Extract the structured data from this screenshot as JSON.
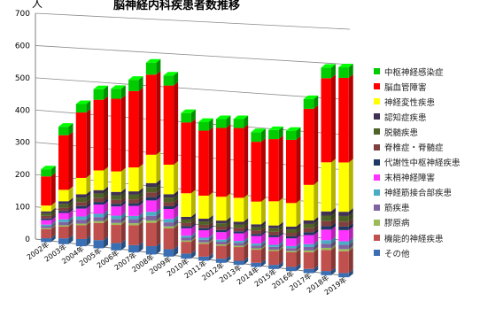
{
  "chart_data": {
    "type": "bar",
    "stacked": true,
    "view": "3d-perspective",
    "title": "脳神経内科疾患者数推移",
    "unit_label": "人",
    "ylim": [
      0,
      700
    ],
    "yticks": [
      0,
      100,
      200,
      300,
      400,
      500,
      600,
      700
    ],
    "grid": true,
    "legend_position": "right",
    "categories": [
      "2002年",
      "2003年",
      "2004年",
      "2005年",
      "2006年",
      "2007年",
      "2008年",
      "2009年",
      "2010年",
      "2011年",
      "2012年",
      "2013年",
      "2014年",
      "2015年",
      "2016年",
      "2017年",
      "2018年",
      "2019年"
    ],
    "series": [
      {
        "name": "その他",
        "color": "#3a6fb3",
        "values": [
          12,
          18,
          22,
          25,
          22,
          22,
          25,
          22,
          15,
          12,
          12,
          12,
          12,
          12,
          12,
          12,
          12,
          12
        ]
      },
      {
        "name": "機能的神経疾患",
        "color": "#c0504d",
        "values": [
          28,
          36,
          42,
          52,
          55,
          60,
          70,
          62,
          35,
          38,
          38,
          40,
          38,
          40,
          42,
          48,
          60,
          62
        ]
      },
      {
        "name": "膠原病",
        "color": "#9bbb59",
        "values": [
          3,
          4,
          5,
          6,
          6,
          6,
          7,
          6,
          4,
          4,
          4,
          4,
          4,
          4,
          4,
          5,
          6,
          6
        ]
      },
      {
        "name": "筋疾患",
        "color": "#8064a2",
        "values": [
          6,
          10,
          12,
          12,
          12,
          12,
          14,
          12,
          8,
          8,
          8,
          8,
          8,
          8,
          8,
          10,
          12,
          12
        ]
      },
      {
        "name": "神経筋接合部疾患",
        "color": "#4bacc6",
        "values": [
          5,
          8,
          10,
          10,
          10,
          10,
          12,
          10,
          6,
          6,
          6,
          6,
          6,
          6,
          6,
          8,
          10,
          10
        ]
      },
      {
        "name": "末梢神経障害",
        "color": "#ff33ff",
        "values": [
          14,
          20,
          24,
          28,
          28,
          30,
          34,
          30,
          22,
          22,
          22,
          22,
          22,
          22,
          22,
          26,
          30,
          32
        ]
      },
      {
        "name": "代謝性中枢神経疾患",
        "color": "#1f3864",
        "values": [
          5,
          6,
          8,
          8,
          8,
          8,
          10,
          8,
          6,
          6,
          6,
          6,
          6,
          6,
          6,
          8,
          10,
          10
        ]
      },
      {
        "name": "脊椎症・脊髄症",
        "color": "#7f3f3f",
        "values": [
          8,
          10,
          12,
          12,
          12,
          12,
          14,
          12,
          10,
          10,
          10,
          10,
          10,
          10,
          10,
          12,
          14,
          14
        ]
      },
      {
        "name": "脱髄疾患",
        "color": "#4f6228",
        "values": [
          8,
          12,
          14,
          14,
          14,
          14,
          16,
          14,
          10,
          10,
          10,
          10,
          10,
          10,
          10,
          12,
          16,
          16
        ]
      },
      {
        "name": "認知症疾患",
        "color": "#403152",
        "values": [
          6,
          8,
          10,
          10,
          10,
          10,
          12,
          10,
          8,
          8,
          8,
          8,
          8,
          8,
          8,
          10,
          12,
          12
        ]
      },
      {
        "name": "神経変性疾患",
        "color": "#ffff00",
        "values": [
          18,
          35,
          50,
          60,
          62,
          72,
          85,
          88,
          70,
          68,
          70,
          70,
          66,
          70,
          68,
          102,
          140,
          140
        ]
      },
      {
        "name": "脳血管障害",
        "color": "#ff0000",
        "values": [
          90,
          168,
          200,
          215,
          220,
          230,
          240,
          236,
          210,
          192,
          202,
          204,
          174,
          180,
          182,
          218,
          240,
          240
        ]
      },
      {
        "name": "中枢神経感染症",
        "color": "#00cc00",
        "values": [
          22,
          26,
          26,
          32,
          30,
          34,
          36,
          30,
          28,
          26,
          26,
          26,
          28,
          26,
          26,
          28,
          30,
          30
        ]
      }
    ]
  }
}
